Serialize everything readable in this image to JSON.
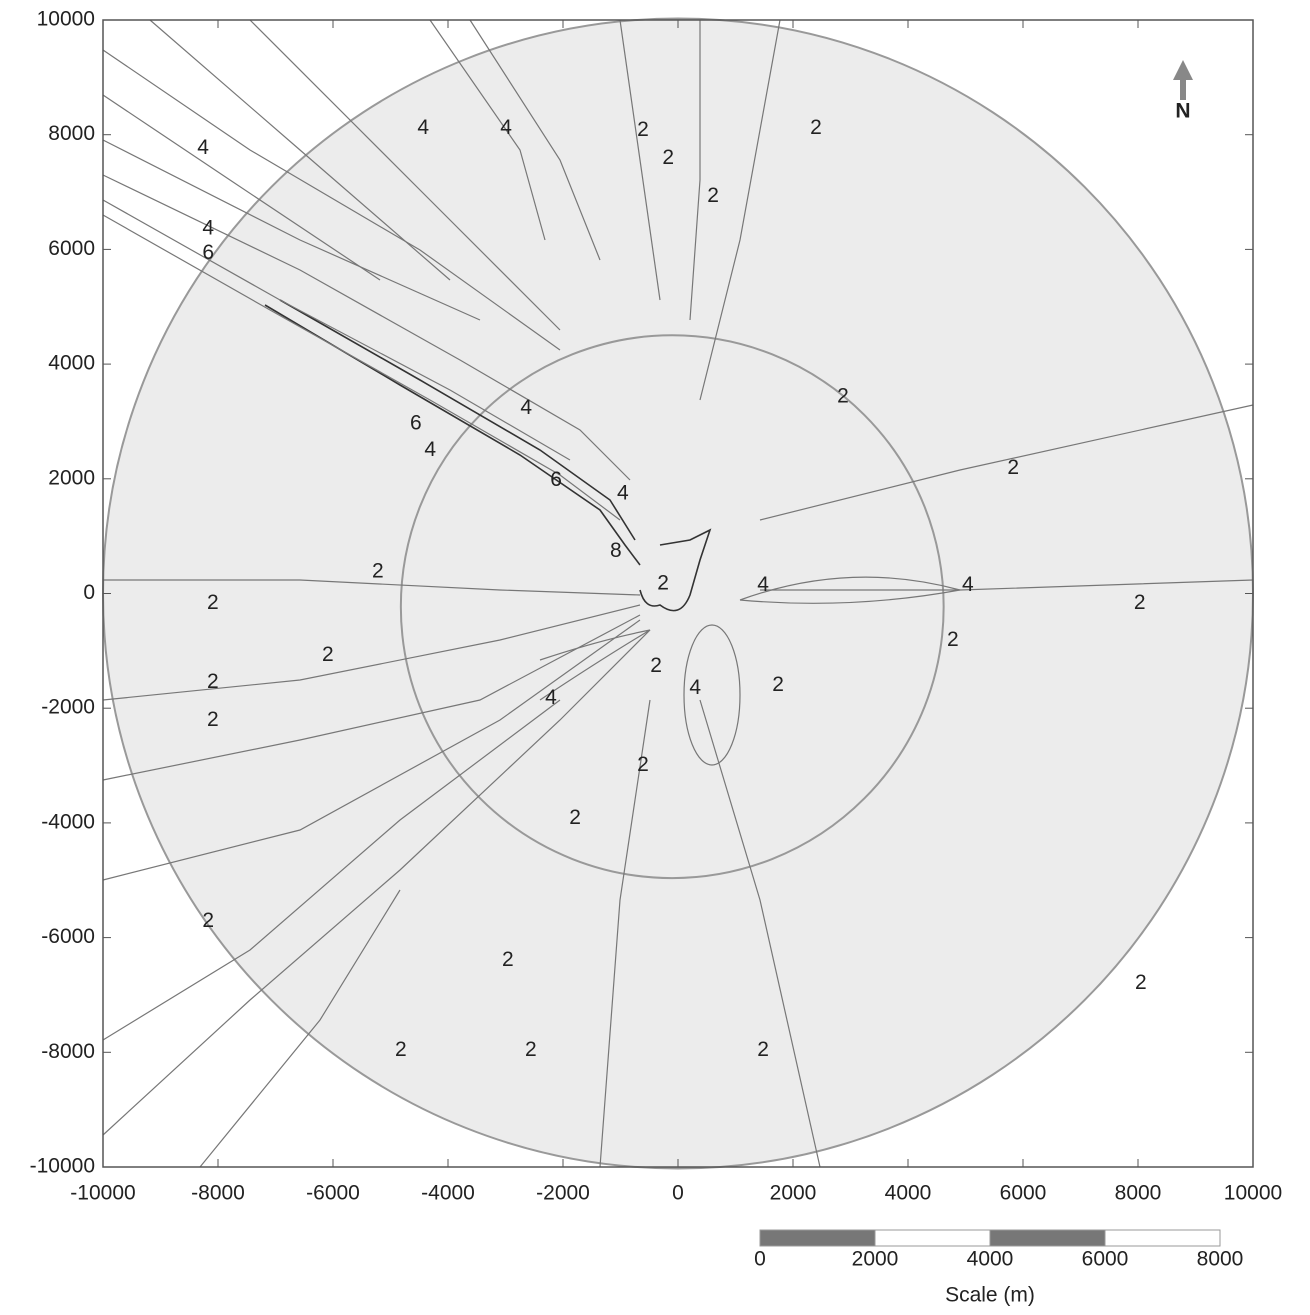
{
  "chart_data": {
    "type": "contour",
    "xlim": [
      -10000,
      10000
    ],
    "ylim": [
      -10000,
      10000
    ],
    "xticks": [
      -10000,
      -8000,
      -6000,
      -4000,
      -2000,
      0,
      2000,
      4000,
      6000,
      8000,
      10000
    ],
    "yticks": [
      -10000,
      -8000,
      -6000,
      -4000,
      -2000,
      0,
      2000,
      4000,
      6000,
      8000,
      10000
    ],
    "rings": [
      {
        "x": 0,
        "y": 0,
        "r": 10000
      },
      {
        "x": -100,
        "y": -230,
        "r": 4720
      }
    ],
    "contour_labels": [
      {
        "level": 4,
        "x": -8260,
        "y": 7760
      },
      {
        "level": 4,
        "x": -4430,
        "y": 8110
      },
      {
        "level": 4,
        "x": -2990,
        "y": 8110
      },
      {
        "level": 2,
        "x": -610,
        "y": 8070
      },
      {
        "level": 2,
        "x": -170,
        "y": 7590
      },
      {
        "level": 2,
        "x": 610,
        "y": 6920
      },
      {
        "level": 2,
        "x": 2400,
        "y": 8110
      },
      {
        "level": 4,
        "x": -8170,
        "y": 6360
      },
      {
        "level": 6,
        "x": -8170,
        "y": 5930
      },
      {
        "level": 6,
        "x": -4560,
        "y": 2960
      },
      {
        "level": 4,
        "x": -4310,
        "y": 2490
      },
      {
        "level": 4,
        "x": -2640,
        "y": 3230
      },
      {
        "level": 2,
        "x": 2870,
        "y": 3430
      },
      {
        "level": 6,
        "x": -2120,
        "y": 1970
      },
      {
        "level": 4,
        "x": -960,
        "y": 1740
      },
      {
        "level": 2,
        "x": 5830,
        "y": 2180
      },
      {
        "level": 8,
        "x": -1080,
        "y": 730
      },
      {
        "level": 2,
        "x": -5220,
        "y": 380
      },
      {
        "level": 2,
        "x": -260,
        "y": 170
      },
      {
        "level": 4,
        "x": 1480,
        "y": 140
      },
      {
        "level": 4,
        "x": 5040,
        "y": 140
      },
      {
        "level": 2,
        "x": -8090,
        "y": -170
      },
      {
        "level": 2,
        "x": 8030,
        "y": -170
      },
      {
        "level": 2,
        "x": 4780,
        "y": -820
      },
      {
        "level": 2,
        "x": -6090,
        "y": -1080
      },
      {
        "level": 2,
        "x": -380,
        "y": -1270
      },
      {
        "level": 4,
        "x": 300,
        "y": -1660
      },
      {
        "level": 2,
        "x": 1740,
        "y": -1600
      },
      {
        "level": 2,
        "x": -8090,
        "y": -1550
      },
      {
        "level": 4,
        "x": -2210,
        "y": -1830
      },
      {
        "level": 2,
        "x": -8090,
        "y": -2210
      },
      {
        "level": 2,
        "x": -610,
        "y": -3000
      },
      {
        "level": 2,
        "x": -1790,
        "y": -3920
      },
      {
        "level": 2,
        "x": -8170,
        "y": -5720
      },
      {
        "level": 2,
        "x": -2960,
        "y": -6400
      },
      {
        "level": 2,
        "x": -4820,
        "y": -7970
      },
      {
        "level": 2,
        "x": -2560,
        "y": -7970
      },
      {
        "level": 2,
        "x": 1480,
        "y": -7970
      },
      {
        "level": 2,
        "x": 8050,
        "y": -6800
      }
    ],
    "north_label": "N",
    "scale": {
      "label": "Scale (m)",
      "ticks": [
        0,
        2000,
        4000,
        6000,
        8000
      ]
    }
  }
}
